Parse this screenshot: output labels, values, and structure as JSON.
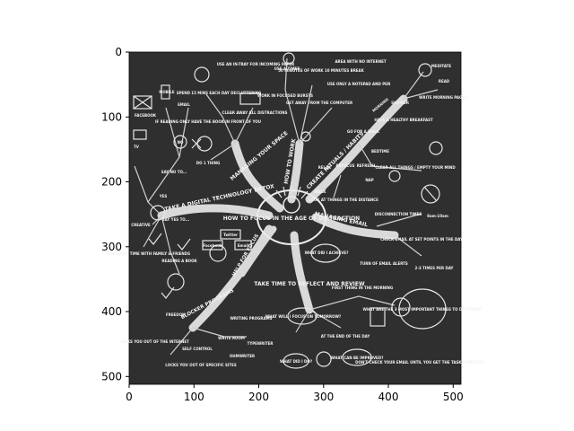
{
  "axes": {
    "x_ticks": [
      "0",
      "100",
      "200",
      "300",
      "400",
      "500"
    ],
    "y_ticks": [
      "0",
      "100",
      "200",
      "300",
      "400",
      "500"
    ]
  },
  "map": {
    "center": "HOW TO FOCUS IN THE AGE OF DISTRACTION",
    "branches": {
      "digital_detox": "TAKE A DIGITAL TECHNOLOGY DETOX",
      "manage_space": "MANAGING YOUR SPACE",
      "how_to_work": "HOW TO WORK",
      "rituals": "CREATE RITUALS / HABITS",
      "email": "MANAGING EMAIL",
      "reflect": "TAKE TIME TO REFLECT AND REVIEW",
      "blocker": "BLOCKER PROGRAMS",
      "help_for_focus": "HELP FOR FOCUS"
    },
    "leaves": {
      "facebook": "FACEBOOK",
      "mobile": "MOBILE",
      "email": "EMAIL",
      "tv": "TV",
      "say_no": "SAY NO TO...",
      "no": "NO",
      "yes": "YES",
      "say_yes": "SAY YES TO...",
      "creative": "CREATIVE",
      "spend_time": "SPENDING TIME WITH FAMILY & FRIENDS",
      "reading_book": "READING A BOOK",
      "freedom": "FREEDOM",
      "locks_out": "LOCKS YOU OUT OF THE INTERNET",
      "self_control": "SELF CONTROL",
      "locks_sites": "LOCKS YOU OUT OF SPECIFIC SITES",
      "writing_programs": "WRITING PROGRAMS",
      "write_room": "WRITE ROOM",
      "typewriter": "TYPEWRITER",
      "ohmwriter": "OHMWRITER",
      "twitter": "Twitter",
      "email_small": "Email",
      "facebook_small": "Facebook",
      "spend_15": "SPEND 15 MINS EACH DAY DECLUTTERING",
      "in_tray": "USE AN IN-TRAY FOR INCOMING PAPER",
      "reading_only": "IF READING ONLY HAVE THE BOOK IN FRONT OF YOU",
      "do_1_thing": "DO 1 THING",
      "clear_away": "CLEAR AWAY ALL DISTRACTIONS",
      "use_timer": "USE A TIMER",
      "work_bursts": "WORK IN FOCUSED BURSTS",
      "minutes": "50 MINUTES OF WORK 10 MINUTES BREAK",
      "get_away": "GET AWAY FROM THE COMPUTER",
      "area_wifi": "AREA WITH NO INTERNET",
      "use_notepad": "USE ONLY A NOTEPAD AND PEN",
      "morning": "MORNING",
      "meditate": "MEDITATE",
      "read": "READ",
      "morning_pages": "WRITE MORNING PAGES",
      "shower": "SHOWER",
      "breakfast": "HAVE A HEALTHY BREAKFAST",
      "go_walk": "GO FOR A WALK",
      "bedtime": "BEDTIME",
      "clear_things": "CLEAR ALL THINGS / EMPTY YOUR MIND",
      "refocus": "REFOCUS",
      "refresh": "REFRESH",
      "relax": "RELAX",
      "walk": "WALK",
      "look_at_things": "LOOK AT THINGS IN THE DISTANCE",
      "nap": "NAP",
      "disconnection": "DISCONNECTION TIMES",
      "times": "8am-10am",
      "check_email": "CHECK EMAIL AT SET POINTS IN THE DAY",
      "turn_off": "TURN OF EMAIL ALERTS",
      "times_per_day": "2-3 TIMES PER DAY",
      "what_achieved": "WHAT DID I ACHIEVE?",
      "first_thing": "FIRST THING IN THE MORNING",
      "end_of_day": "AT THE END OF THE DAY",
      "focus_tomorrow": "WHAT WILL I FOCUS ON TOMORROW?",
      "what_did_i_do": "WHAT DID I DO?",
      "improved": "WHAT CAN BE IMPROVED?",
      "most_important": "WHAT ARE THE 3 MOST IMPORTANT THINGS TO DO TODAY?",
      "dont_check": "DON'T CHECK YOUR EMAIL UNTIL YOU GET THE TASK COMPLETE"
    }
  }
}
